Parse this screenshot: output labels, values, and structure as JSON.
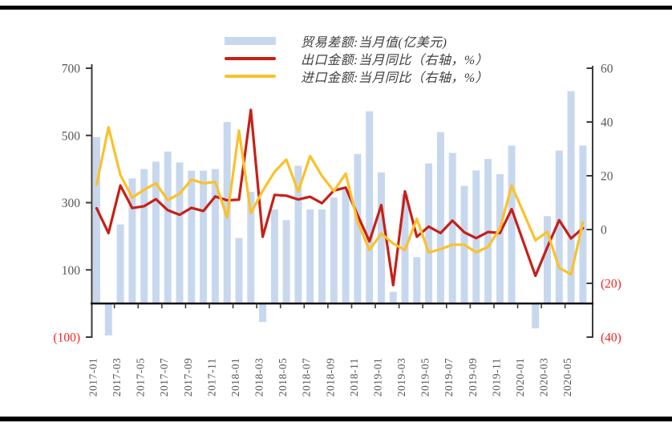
{
  "figure": {
    "legend": [
      {
        "label": "贸易差额:当月值(亿美元)",
        "swatch": "bar",
        "color": "#C7D8EE"
      },
      {
        "label": "出口金额:当月同比（右轴，%）",
        "swatch": "line",
        "color": "#C62018"
      },
      {
        "label": "进口金额:当月同比（右轴，%）",
        "swatch": "line",
        "color": "#FBC12C"
      }
    ]
  },
  "chart_data": {
    "type": "bar",
    "subtype": "combo-bar-line",
    "x": [
      "2017-01",
      "2017-02",
      "2017-03",
      "2017-04",
      "2017-05",
      "2017-06",
      "2017-07",
      "2017-08",
      "2017-09",
      "2017-10",
      "2017-11",
      "2017-12",
      "2018-01",
      "2018-02",
      "2018-03",
      "2018-04",
      "2018-05",
      "2018-06",
      "2018-07",
      "2018-08",
      "2018-09",
      "2018-10",
      "2018-11",
      "2018-12",
      "2019-01",
      "2019-02",
      "2019-03",
      "2019-04",
      "2019-05",
      "2019-06",
      "2019-07",
      "2019-08",
      "2019-09",
      "2019-10",
      "2019-11",
      "2019-12",
      "2020-01",
      "2020-02",
      "2020-03",
      "2020-04",
      "2020-05",
      "2020-06"
    ],
    "x_labels_shown_every": 2,
    "series": [
      {
        "name": "贸易差额:当月值(亿美元)",
        "type": "bar",
        "axis": "left",
        "color": "#C7D8EE",
        "values": [
          495,
          -95,
          235,
          372,
          400,
          422,
          452,
          420,
          395,
          395,
          400,
          540,
          195,
          332,
          -55,
          280,
          248,
          410,
          280,
          280,
          315,
          340,
          445,
          572,
          390,
          35,
          325,
          138,
          417,
          510,
          448,
          350,
          396,
          430,
          385,
          470,
          null,
          -74,
          260,
          455,
          632,
          470
        ]
      },
      {
        "name": "出口金额:当月同比（右轴，%）",
        "type": "line",
        "axis": "right",
        "color": "#C62018",
        "values": [
          7.9,
          -1.3,
          16.4,
          8.0,
          8.7,
          11.3,
          7.2,
          5.5,
          8.1,
          6.9,
          12.3,
          10.9,
          11.1,
          44.5,
          -2.7,
          12.9,
          12.6,
          11.2,
          12.2,
          9.8,
          14.5,
          15.6,
          5.4,
          -4.4,
          9.1,
          -20.7,
          14.2,
          -2.7,
          1.1,
          -1.3,
          3.3,
          -1.0,
          -3.2,
          -0.9,
          -1.3,
          7.6,
          -4.8,
          -17.2,
          -6.6,
          3.5,
          -3.3,
          0.5
        ]
      },
      {
        "name": "进口金额:当月同比（右轴，%）",
        "type": "line",
        "axis": "right",
        "color": "#FBC12C",
        "values": [
          16.7,
          38.1,
          20.3,
          11.9,
          14.8,
          17.2,
          11.0,
          13.3,
          18.6,
          17.2,
          17.7,
          4.5,
          36.8,
          6.1,
          14.4,
          21.5,
          26.0,
          14.1,
          27.3,
          19.9,
          14.3,
          20.8,
          3.0,
          -7.6,
          -1.5,
          -5.2,
          -7.6,
          4.0,
          -8.5,
          -7.3,
          -5.6,
          -5.6,
          -8.5,
          -6.4,
          0.3,
          16.3,
          6.2,
          -4.0,
          -0.9,
          -14.2,
          -16.7,
          2.7
        ]
      }
    ],
    "left_axis": {
      "min": -100,
      "max": 700,
      "ticks": [
        700,
        500,
        300,
        100,
        -100
      ]
    },
    "right_axis": {
      "min": -40,
      "max": 60,
      "ticks": [
        60,
        40,
        20,
        0,
        -20,
        -40
      ]
    },
    "grid": false,
    "legend_position": "top-center",
    "negative_label_style": "parentheses-red",
    "colors": {
      "tick_text": "#575757",
      "negative_tick_text": "#F32222",
      "axis_line": "#3a3a3a",
      "baseline": "#111111"
    }
  }
}
